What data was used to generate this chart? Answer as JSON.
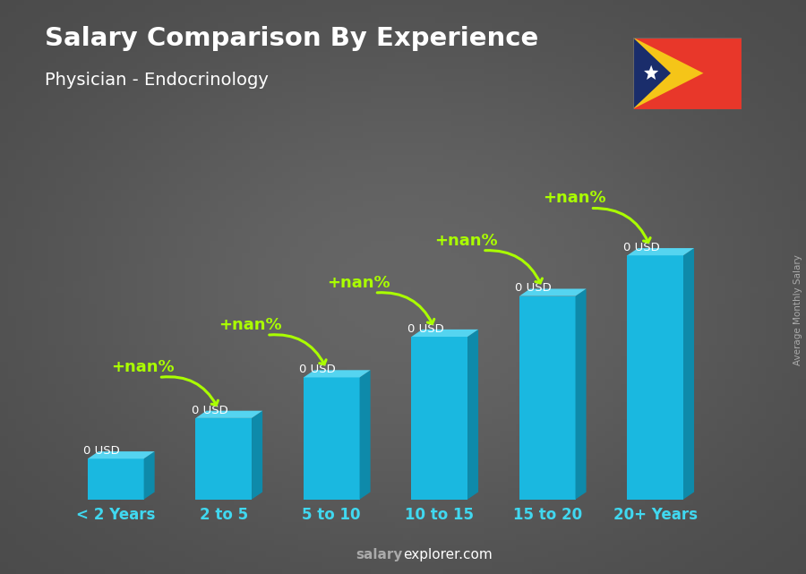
{
  "title": "Salary Comparison By Experience",
  "subtitle": "Physician - Endocrinology",
  "categories": [
    "< 2 Years",
    "2 to 5",
    "5 to 10",
    "10 to 15",
    "15 to 20",
    "20+ Years"
  ],
  "values": [
    1,
    2,
    3,
    4,
    5,
    6
  ],
  "bar_color_front": "#1ab8e0",
  "bar_color_top": "#55d4f0",
  "bar_color_side": "#0e8aaa",
  "bar_labels": [
    "0 USD",
    "0 USD",
    "0 USD",
    "0 USD",
    "0 USD",
    "0 USD"
  ],
  "pct_labels": [
    "+nan%",
    "+nan%",
    "+nan%",
    "+nan%",
    "+nan%"
  ],
  "background_color": "#555555",
  "title_color": "#ffffff",
  "subtitle_color": "#ffffff",
  "xticklabel_color": "#40d8f0",
  "bar_label_color": "#ffffff",
  "pct_color": "#aaff00",
  "watermark_salary": "salary",
  "watermark_explorer": "explorer",
  "watermark_com": ".com",
  "watermark_color_salary": "#aaaaaa",
  "watermark_color_explorer": "#ffffff",
  "side_label": "Average Monthly Salary",
  "side_label_color": "#aaaaaa",
  "flag_red": "#e8372a",
  "flag_yellow": "#f5c518",
  "flag_blue": "#1a2d6b",
  "figwidth": 9.0,
  "figheight": 6.41
}
